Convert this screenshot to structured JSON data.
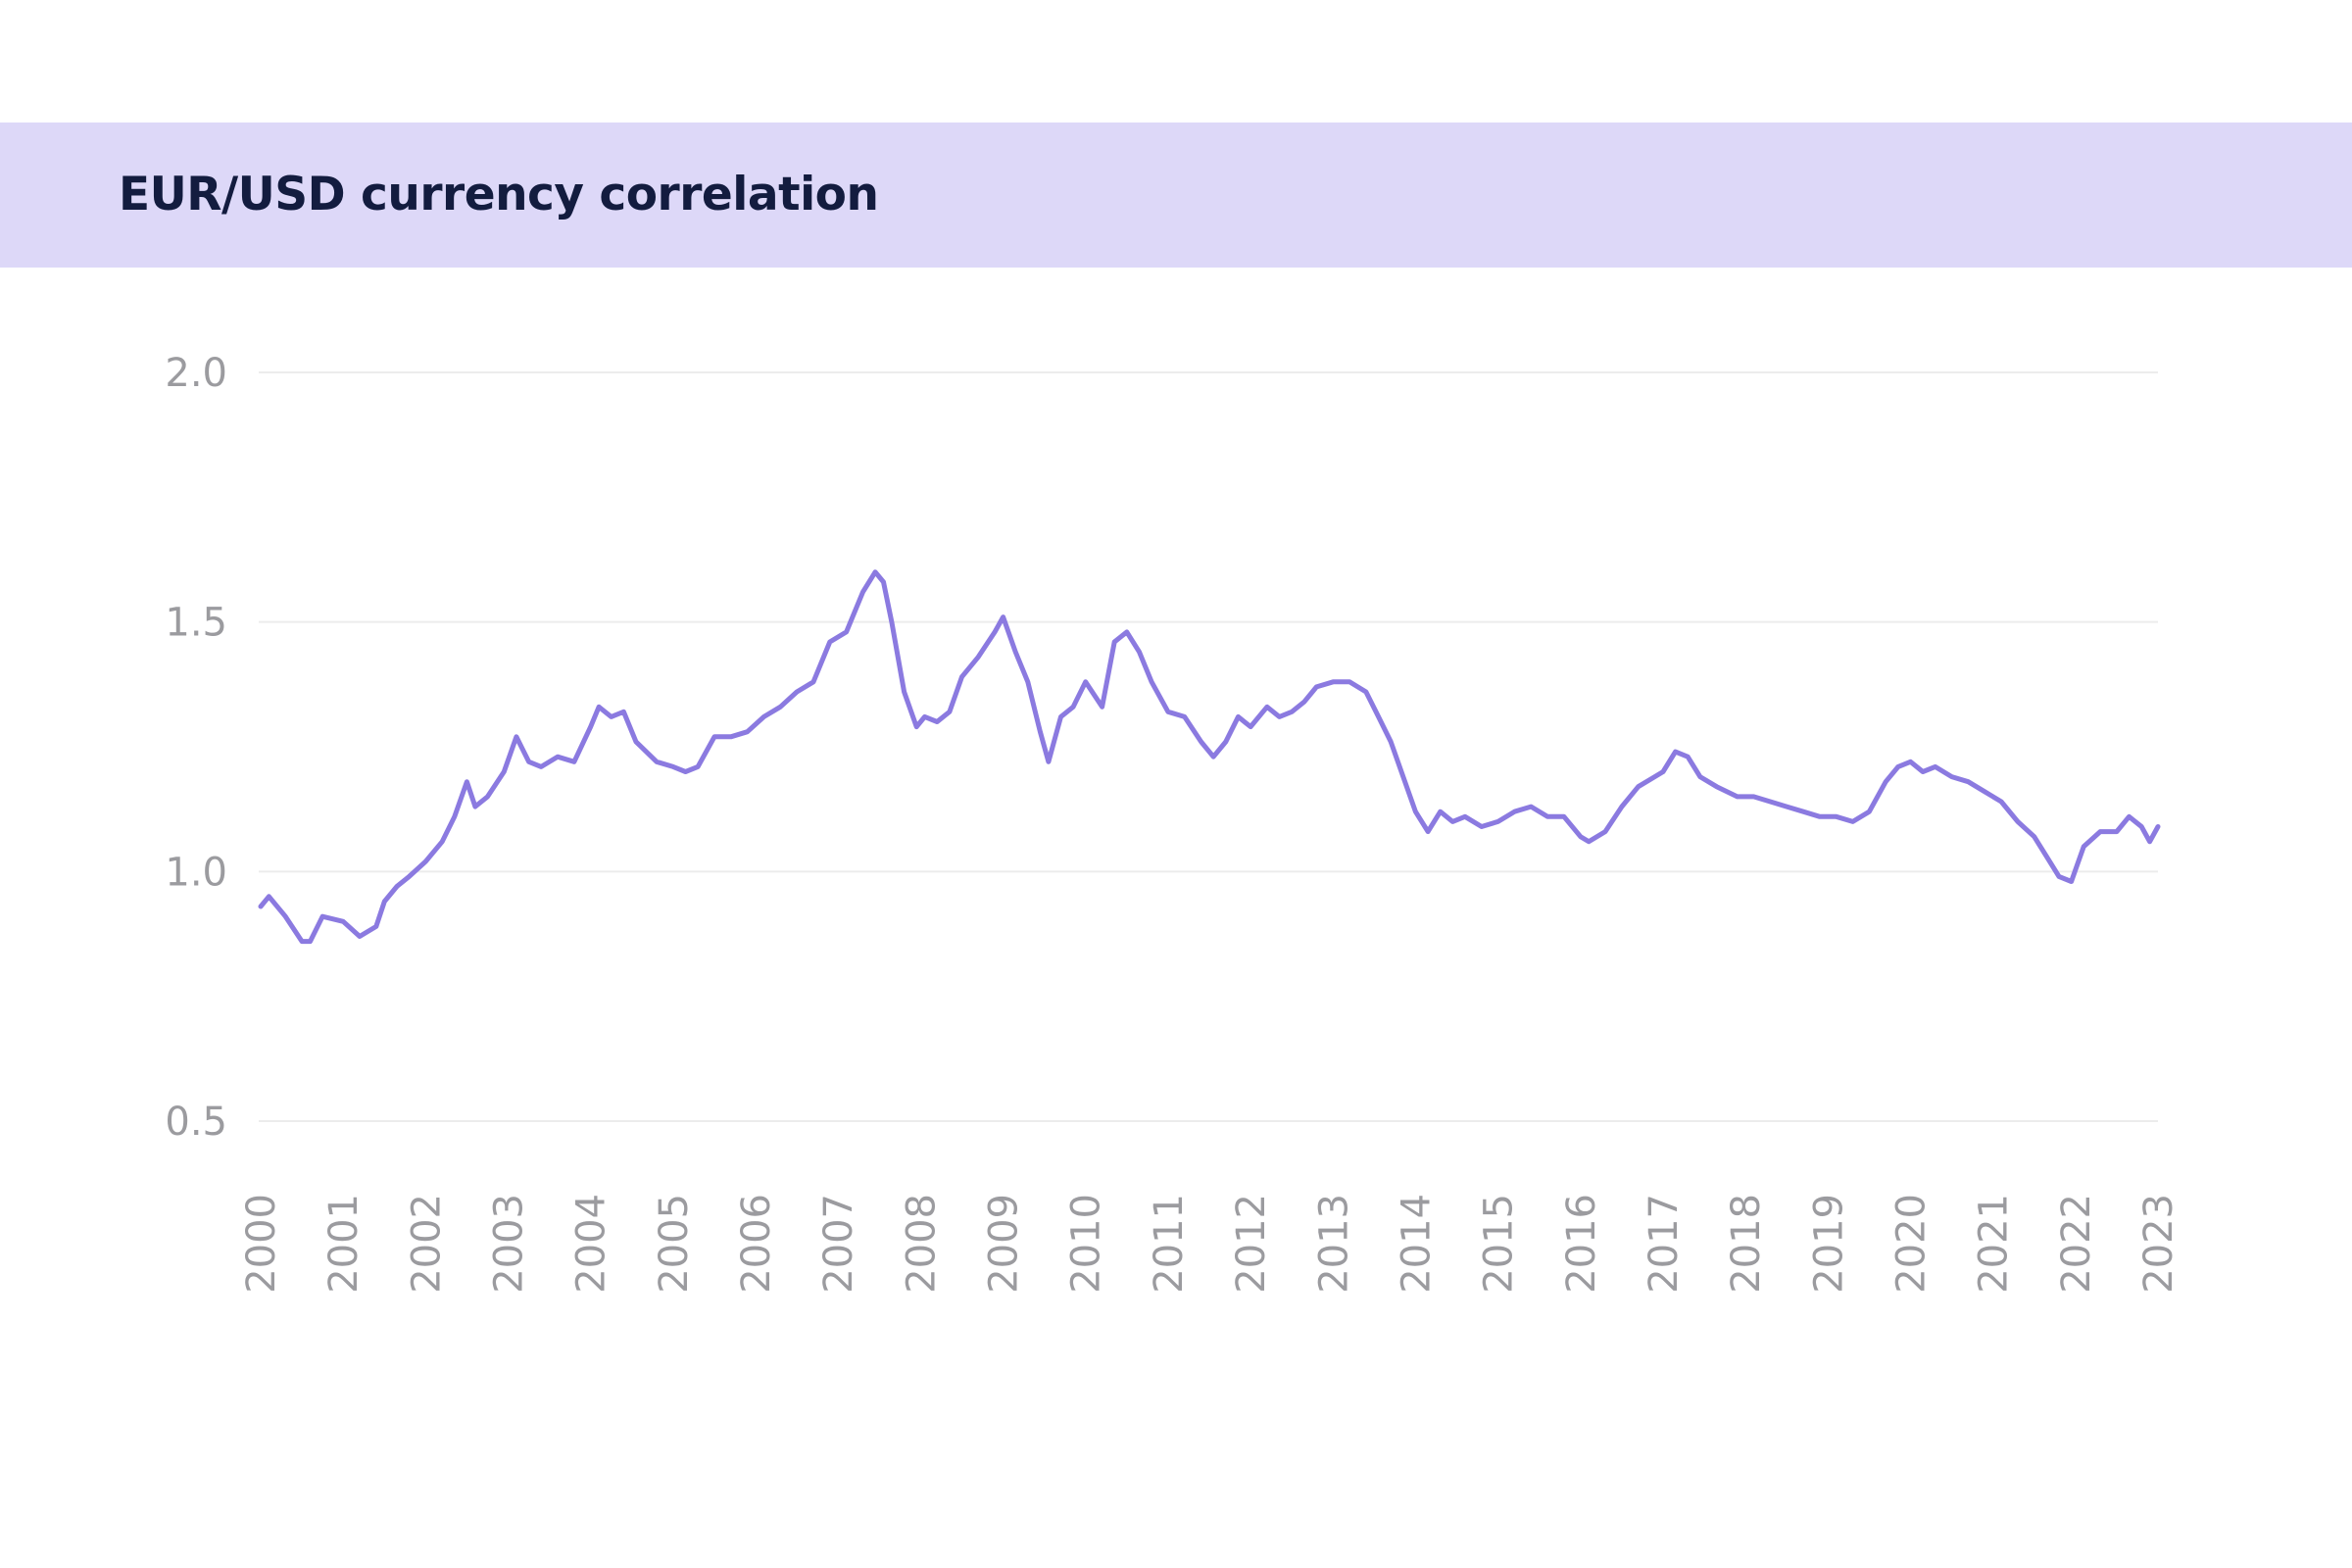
{
  "header": {
    "title": "EUR/USD currency correlation"
  },
  "colors": {
    "header_band": "#ddd8f8",
    "title_text": "#131c3f",
    "line": "#8b7ae0",
    "gridline": "#ececec",
    "tick_text": "#9b9b9f"
  },
  "chart_data": {
    "type": "line",
    "title": "EUR/USD currency correlation",
    "xlabel": "",
    "ylabel": "",
    "xlim": [
      2000,
      2023
    ],
    "ylim": [
      0.5,
      2.0
    ],
    "grid": true,
    "x_ticks": [
      "2000",
      "2001",
      "2002",
      "2003",
      "2004",
      "2005",
      "2006",
      "2007",
      "2008",
      "2009",
      "2010",
      "2011",
      "2012",
      "2013",
      "2014",
      "2015",
      "2016",
      "2017",
      "2018",
      "2019",
      "2020",
      "2021",
      "2022",
      "2023"
    ],
    "y_ticks": [
      "0.5",
      "1.0",
      "1.5",
      "2.0"
    ],
    "series": [
      {
        "x": [
          2000.0,
          2000.1,
          2000.3,
          2000.5,
          2000.6,
          2000.75,
          2001.0,
          2001.2,
          2001.4,
          2001.5,
          2001.65,
          2001.8,
          2002.0,
          2002.2,
          2002.35,
          2002.5,
          2002.6,
          2002.75,
          2002.95,
          2003.1,
          2003.25,
          2003.4,
          2003.6,
          2003.8,
          2004.0,
          2004.1,
          2004.25,
          2004.4,
          2004.55,
          2004.8,
          2005.0,
          2005.15,
          2005.3,
          2005.5,
          2005.7,
          2005.9,
          2006.1,
          2006.3,
          2006.5,
          2006.7,
          2006.9,
          2007.1,
          2007.3,
          2007.45,
          2007.55,
          2007.65,
          2007.8,
          2007.95,
          2008.05,
          2008.2,
          2008.35,
          2008.5,
          2008.7,
          2008.9,
          2009.0,
          2009.15,
          2009.3,
          2009.45,
          2009.55,
          2009.7,
          2009.85,
          2010.0,
          2010.2,
          2010.35,
          2010.5,
          2010.65,
          2010.8,
          2011.0,
          2011.2,
          2011.4,
          2011.55,
          2011.7,
          2011.85,
          2012.0,
          2012.2,
          2012.35,
          2012.5,
          2012.65,
          2012.8,
          2013.0,
          2013.2,
          2013.4,
          2013.55,
          2013.7,
          2013.85,
          2014.0,
          2014.15,
          2014.3,
          2014.45,
          2014.6,
          2014.8,
          2015.0,
          2015.2,
          2015.4,
          2015.6,
          2015.8,
          2016.0,
          2016.1,
          2016.3,
          2016.5,
          2016.7,
          2016.9,
          2017.0,
          2017.15,
          2017.3,
          2017.45,
          2017.65,
          2017.9,
          2018.1,
          2018.3,
          2018.5,
          2018.7,
          2018.9,
          2019.1,
          2019.3,
          2019.5,
          2019.7,
          2019.85,
          2020.0,
          2020.15,
          2020.3,
          2020.5,
          2020.7,
          2020.9,
          2021.1,
          2021.3,
          2021.5,
          2021.65,
          2021.8,
          2021.95,
          2022.1,
          2022.3,
          2022.5,
          2022.65,
          2022.8,
          2022.9,
          2023.0
        ],
        "y": [
          0.93,
          0.95,
          0.91,
          0.86,
          0.86,
          0.91,
          0.9,
          0.87,
          0.89,
          0.94,
          0.97,
          0.99,
          1.02,
          1.06,
          1.11,
          1.18,
          1.13,
          1.15,
          1.2,
          1.27,
          1.22,
          1.21,
          1.23,
          1.22,
          1.29,
          1.33,
          1.31,
          1.32,
          1.26,
          1.22,
          1.21,
          1.2,
          1.21,
          1.27,
          1.27,
          1.28,
          1.31,
          1.33,
          1.36,
          1.38,
          1.46,
          1.48,
          1.56,
          1.6,
          1.58,
          1.5,
          1.36,
          1.29,
          1.31,
          1.3,
          1.32,
          1.39,
          1.43,
          1.48,
          1.51,
          1.44,
          1.38,
          1.28,
          1.22,
          1.31,
          1.33,
          1.38,
          1.33,
          1.46,
          1.48,
          1.44,
          1.38,
          1.32,
          1.31,
          1.26,
          1.23,
          1.26,
          1.31,
          1.29,
          1.33,
          1.31,
          1.32,
          1.34,
          1.37,
          1.38,
          1.38,
          1.36,
          1.31,
          1.26,
          1.19,
          1.12,
          1.08,
          1.12,
          1.1,
          1.11,
          1.09,
          1.1,
          1.12,
          1.13,
          1.11,
          1.11,
          1.07,
          1.06,
          1.08,
          1.13,
          1.17,
          1.19,
          1.2,
          1.24,
          1.23,
          1.19,
          1.17,
          1.15,
          1.15,
          1.14,
          1.13,
          1.12,
          1.11,
          1.11,
          1.1,
          1.12,
          1.18,
          1.21,
          1.22,
          1.2,
          1.21,
          1.19,
          1.18,
          1.16,
          1.14,
          1.1,
          1.07,
          1.03,
          0.99,
          0.98,
          1.05,
          1.08,
          1.08,
          1.11,
          1.09,
          1.06,
          1.09
        ]
      }
    ]
  }
}
